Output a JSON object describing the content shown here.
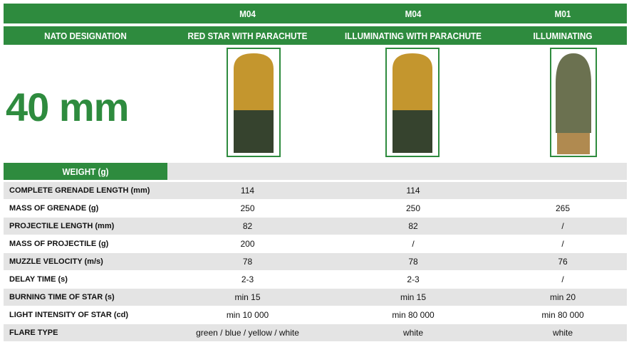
{
  "header": {
    "models": [
      "M04",
      "M04",
      "M01"
    ],
    "designation_label": "NATO DESIGNATION",
    "designations": [
      "RED STAR WITH PARACHUTE",
      "ILLUMINATING WITH PARACHUTE",
      "ILLUMINATING"
    ]
  },
  "caliber": "40 mm",
  "table": {
    "section": "WEIGHT (g)",
    "rows": [
      {
        "label": "COMPLETE GRENADE LENGTH (mm)",
        "values": [
          114,
          114,
          null
        ]
      },
      {
        "label": "MASS OF GRENADE (g)",
        "values": [
          250,
          250,
          265
        ]
      },
      {
        "label": "PROJECTILE LENGTH (mm)",
        "values": [
          82,
          82,
          "/"
        ]
      },
      {
        "label": "MASS OF PROJECTILE (g)",
        "values": [
          200,
          "/",
          "/"
        ]
      },
      {
        "label": "MUZZLE VELOCITY (m/s)",
        "values": [
          78,
          78,
          76
        ]
      },
      {
        "label": "DELAY TIME (s)",
        "values": [
          "2-3",
          "2-3",
          "/"
        ]
      },
      {
        "label": "BURNING TIME OF STAR (s)",
        "values": [
          "min 15",
          "min 15",
          "min 20"
        ]
      },
      {
        "label": "LIGHT INTENSITY OF STAR (cd)",
        "values": [
          "min 10 000",
          "min 80 000",
          "min 80 000"
        ]
      },
      {
        "label": "FLARE TYPE",
        "values": [
          "green / blue / yellow / white",
          "white",
          "white"
        ]
      }
    ]
  }
}
